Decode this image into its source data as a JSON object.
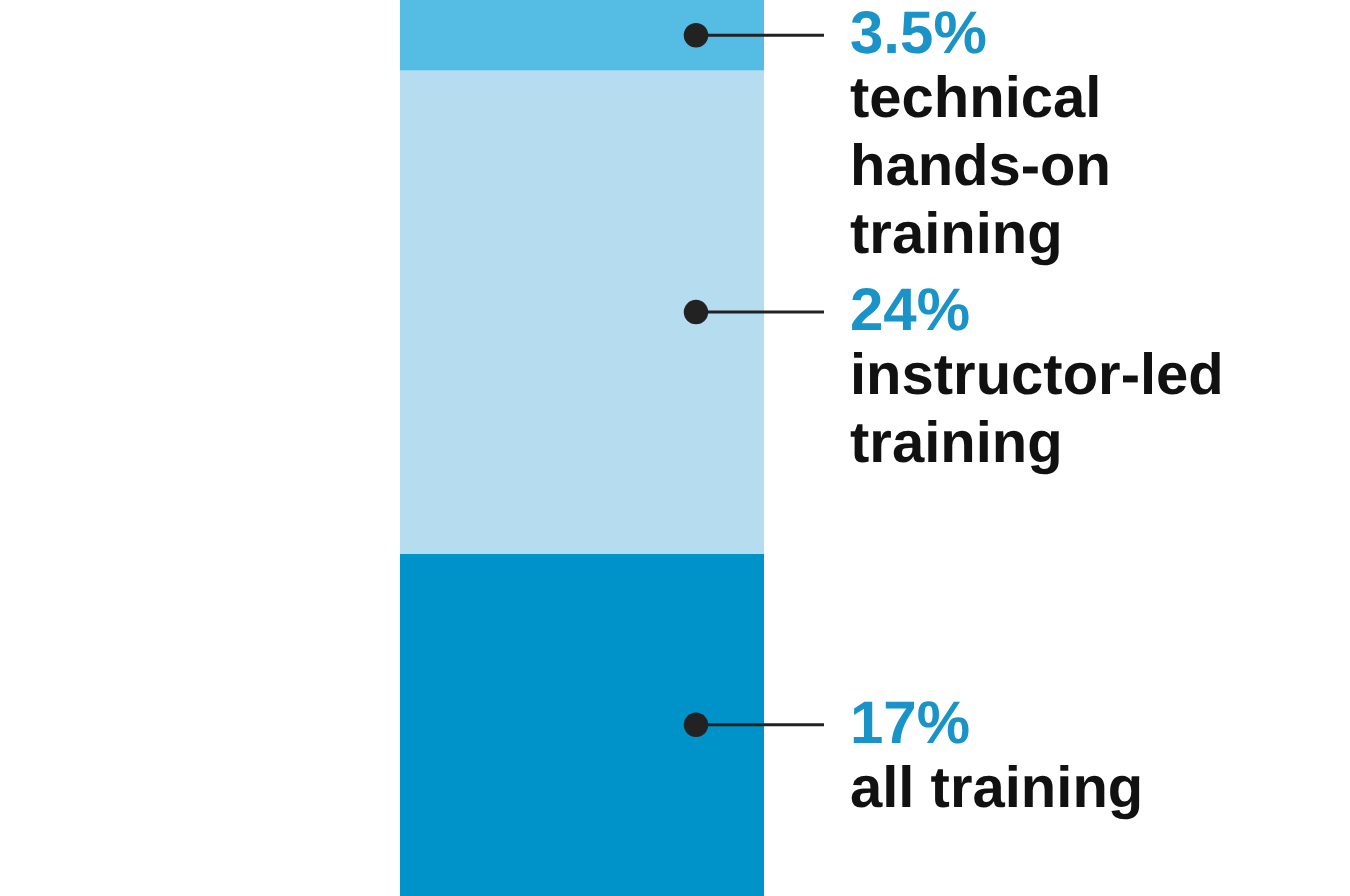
{
  "chart_data": {
    "type": "bar",
    "stacked": true,
    "categories": [
      null
    ],
    "series": [
      {
        "name": "all training",
        "color": "#0093c9",
        "values": [
          17
        ],
        "value_labels": [
          "17%"
        ]
      },
      {
        "name": "instructor-led training",
        "color": "#b5dcef",
        "values": [
          24
        ],
        "value_labels": [
          "24%"
        ]
      },
      {
        "name": "technical hands-on training",
        "color": "#55bde3",
        "values": [
          3.5
        ],
        "value_labels": [
          "3.5%"
        ]
      }
    ]
  }
}
